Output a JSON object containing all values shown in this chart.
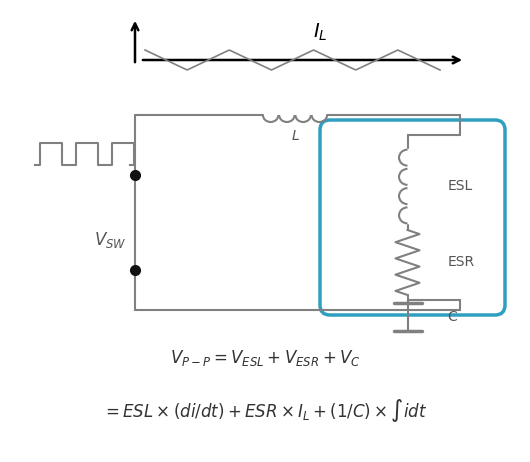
{
  "background_color": "#ffffff",
  "line_color": "#808080",
  "box_color": "#2e9fbf",
  "arrow_color": "#000000",
  "dot_color": "#111111",
  "fig_width": 5.3,
  "fig_height": 4.62,
  "formula1": "$V_{P-P} = V_{ESL} + V_{ESR} + V_C$",
  "formula2": "$= ESL \\times (di/dt) + ESR \\times I_L + (1/C) \\times \\int idt$"
}
